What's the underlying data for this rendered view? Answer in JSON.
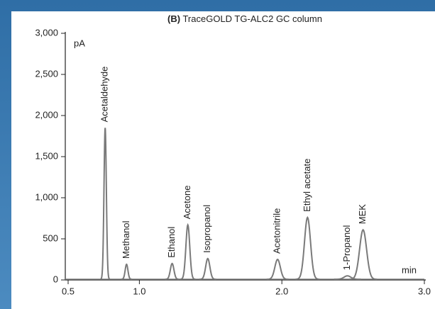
{
  "chart_data": {
    "type": "chromatogram",
    "title_prefix": "(B)",
    "title": "TraceGOLD TG-ALC2 GC column",
    "y_unit": "pA",
    "x_unit": "min",
    "peaks": [
      {
        "name": "Acetaldehyde",
        "time": 0.76,
        "height": 1850
      },
      {
        "name": "Methanol",
        "time": 0.91,
        "height": 190
      },
      {
        "name": "Ethanol",
        "time": 1.23,
        "height": 200
      },
      {
        "name": "Acetone",
        "time": 1.34,
        "height": 670
      },
      {
        "name": "Isopropanol",
        "time": 1.48,
        "height": 260
      },
      {
        "name": "Acetonitrile",
        "time": 1.97,
        "height": 250
      },
      {
        "name": "Ethyl acetate",
        "time": 2.18,
        "height": 760
      },
      {
        "name": "1-Propanol",
        "time": 2.46,
        "height": 50
      },
      {
        "name": "MEK",
        "time": 2.57,
        "height": 610
      }
    ],
    "color": "#7a7a7a",
    "xlim": [
      0.5,
      3.0
    ],
    "xticks": [
      0.5,
      {
        "value": 1.0,
        "label": "1.0"
      },
      {
        "value": 2.0,
        "label": "2.0"
      },
      {
        "value": 3.0,
        "label": "3.0"
      }
    ],
    "ylim": [
      0,
      3000
    ],
    "yticks": [
      0,
      500,
      {
        "value": 1000,
        "label": "1,000"
      },
      {
        "value": 1500,
        "label": "1,500"
      },
      {
        "value": 2000,
        "label": "2,000"
      },
      {
        "value": 2500,
        "label": "2,500"
      },
      {
        "value": 3000,
        "label": "3,000"
      }
    ]
  }
}
